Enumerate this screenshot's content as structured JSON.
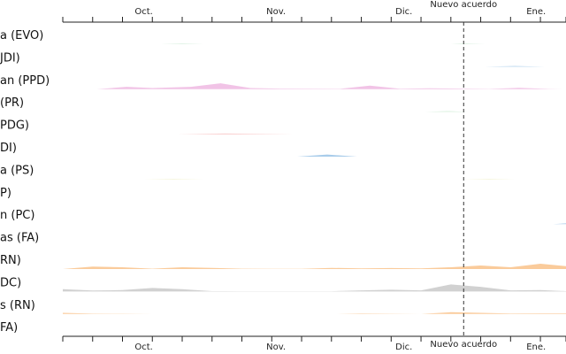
{
  "chart_data": {
    "type": "area",
    "title": "",
    "xlabel": "",
    "ylabel": "",
    "x_domain": [
      "2019-09-12",
      "2020-01-08"
    ],
    "x_ticks": [
      {
        "date": "2019-10-01",
        "label": "Oct."
      },
      {
        "date": "2019-11-01",
        "label": "Nov."
      },
      {
        "date": "2019-12-01",
        "label": "Dic."
      },
      {
        "date": "2020-01-01",
        "label": "Ene."
      }
    ],
    "minor_ticks": [
      "2019-09-12",
      "2019-09-19",
      "2019-09-26",
      "2019-10-03",
      "2019-10-10",
      "2019-10-17",
      "2019-10-24",
      "2019-10-31",
      "2019-11-07",
      "2019-11-14",
      "2019-11-21",
      "2019-11-28",
      "2019-12-05",
      "2019-12-12",
      "2019-12-19",
      "2019-12-26",
      "2020-01-02",
      "2020-01-08"
    ],
    "annotation": {
      "date": "2019-12-15",
      "label": "Nuevo acuerdo"
    },
    "y_max": 12,
    "grid": false,
    "legend": "none",
    "series": [
      {
        "name": "a (EVO)",
        "color": "#a9ddb6",
        "points": [
          [
            "2019-10-05",
            0
          ],
          [
            "2019-10-10",
            0.3
          ],
          [
            "2019-10-15",
            0
          ],
          [
            "2019-12-12",
            0
          ],
          [
            "2019-12-15",
            0.3
          ],
          [
            "2019-12-20",
            0
          ]
        ]
      },
      {
        "name": "JDI)",
        "color": "#9fc7e8",
        "points": [
          [
            "2019-12-20",
            0
          ],
          [
            "2019-12-27",
            0.6
          ],
          [
            "2020-01-03",
            0
          ]
        ]
      },
      {
        "name": "an (PPD)",
        "color": "#f0bce3",
        "points": [
          [
            "2019-09-20",
            0
          ],
          [
            "2019-09-27",
            2
          ],
          [
            "2019-10-03",
            1
          ],
          [
            "2019-10-12",
            2
          ],
          [
            "2019-10-19",
            5
          ],
          [
            "2019-10-26",
            1
          ],
          [
            "2019-11-02",
            0.5
          ],
          [
            "2019-11-09",
            0.4
          ],
          [
            "2019-11-16",
            0.3
          ],
          [
            "2019-11-23",
            3
          ],
          [
            "2019-11-30",
            0.4
          ],
          [
            "2019-12-07",
            0.8
          ],
          [
            "2019-12-14",
            0.5
          ],
          [
            "2019-12-21",
            0.2
          ],
          [
            "2019-12-28",
            1.2
          ],
          [
            "2020-01-04",
            0.2
          ],
          [
            "2020-01-08",
            0
          ]
        ]
      },
      {
        "name": "(PR)",
        "color": "#a9ddb6",
        "points": [
          [
            "2019-12-06",
            0
          ],
          [
            "2019-12-11",
            0.4
          ],
          [
            "2019-12-16",
            0
          ]
        ]
      },
      {
        "name": "PDG)",
        "color": "#f7b0b0",
        "points": [
          [
            "2019-10-09",
            0
          ],
          [
            "2019-10-20",
            0.5
          ],
          [
            "2019-11-05",
            0
          ]
        ]
      },
      {
        "name": "DI)",
        "color": "#9fc7e8",
        "points": [
          [
            "2019-11-06",
            0
          ],
          [
            "2019-11-13",
            1.8
          ],
          [
            "2019-11-20",
            0
          ]
        ]
      },
      {
        "name": "a (PS)",
        "color": "#e6e6a1",
        "points": [
          [
            "2019-10-01",
            0
          ],
          [
            "2019-10-08",
            0.3
          ],
          [
            "2019-10-15",
            0
          ],
          [
            "2019-12-15",
            0
          ],
          [
            "2019-12-21",
            0.3
          ],
          [
            "2019-12-27",
            0
          ]
        ]
      },
      {
        "name": "P)",
        "color": "#dddddd",
        "points": []
      },
      {
        "name": "n (PC)",
        "color": "#9fc7e8",
        "points": [
          [
            "2020-01-05",
            0
          ],
          [
            "2020-01-08",
            0.6
          ]
        ]
      },
      {
        "name": "as (FA)",
        "color": "#f9c590",
        "points": []
      },
      {
        "name": "RN)",
        "color": "#f9c590",
        "points": [
          [
            "2019-09-12",
            0
          ],
          [
            "2019-09-19",
            2
          ],
          [
            "2019-09-26",
            1.5
          ],
          [
            "2019-10-03",
            0.3
          ],
          [
            "2019-10-10",
            1.5
          ],
          [
            "2019-10-17",
            1
          ],
          [
            "2019-10-24",
            0.3
          ],
          [
            "2019-10-31",
            0.2
          ],
          [
            "2019-11-07",
            0.2
          ],
          [
            "2019-11-14",
            1
          ],
          [
            "2019-11-21",
            0.5
          ],
          [
            "2019-11-28",
            0.8
          ],
          [
            "2019-12-05",
            0.5
          ],
          [
            "2019-12-12",
            1.5
          ],
          [
            "2019-12-19",
            3
          ],
          [
            "2019-12-26",
            1.5
          ],
          [
            "2020-01-02",
            4.5
          ],
          [
            "2020-01-08",
            2.5
          ]
        ]
      },
      {
        "name": "DC)",
        "color": "#cccccc",
        "points": [
          [
            "2019-09-12",
            2
          ],
          [
            "2019-09-19",
            0.8
          ],
          [
            "2019-09-26",
            1.2
          ],
          [
            "2019-10-03",
            3
          ],
          [
            "2019-10-10",
            2
          ],
          [
            "2019-10-17",
            0.3
          ],
          [
            "2019-10-24",
            0.2
          ],
          [
            "2019-10-31",
            0.2
          ],
          [
            "2019-11-07",
            0.2
          ],
          [
            "2019-11-14",
            0.2
          ],
          [
            "2019-11-21",
            1
          ],
          [
            "2019-11-28",
            1.5
          ],
          [
            "2019-12-05",
            1
          ],
          [
            "2019-12-12",
            6
          ],
          [
            "2019-12-19",
            4
          ],
          [
            "2019-12-26",
            1
          ],
          [
            "2020-01-02",
            1.2
          ],
          [
            "2020-01-08",
            0.3
          ]
        ]
      },
      {
        "name": "s (RN)",
        "color": "#f9c590",
        "points": [
          [
            "2019-09-12",
            1
          ],
          [
            "2019-09-19",
            0.3
          ],
          [
            "2019-09-26",
            0.2
          ],
          [
            "2019-10-03",
            0
          ],
          [
            "2019-11-14",
            0
          ],
          [
            "2019-11-21",
            0.4
          ],
          [
            "2019-11-28",
            0.2
          ],
          [
            "2019-12-05",
            0
          ],
          [
            "2019-12-12",
            1.5
          ],
          [
            "2019-12-19",
            1
          ],
          [
            "2019-12-26",
            0.4
          ],
          [
            "2020-01-02",
            0.5
          ],
          [
            "2020-01-08",
            0.5
          ]
        ]
      },
      {
        "name": "FA)",
        "color": "#dddddd",
        "points": []
      }
    ]
  }
}
